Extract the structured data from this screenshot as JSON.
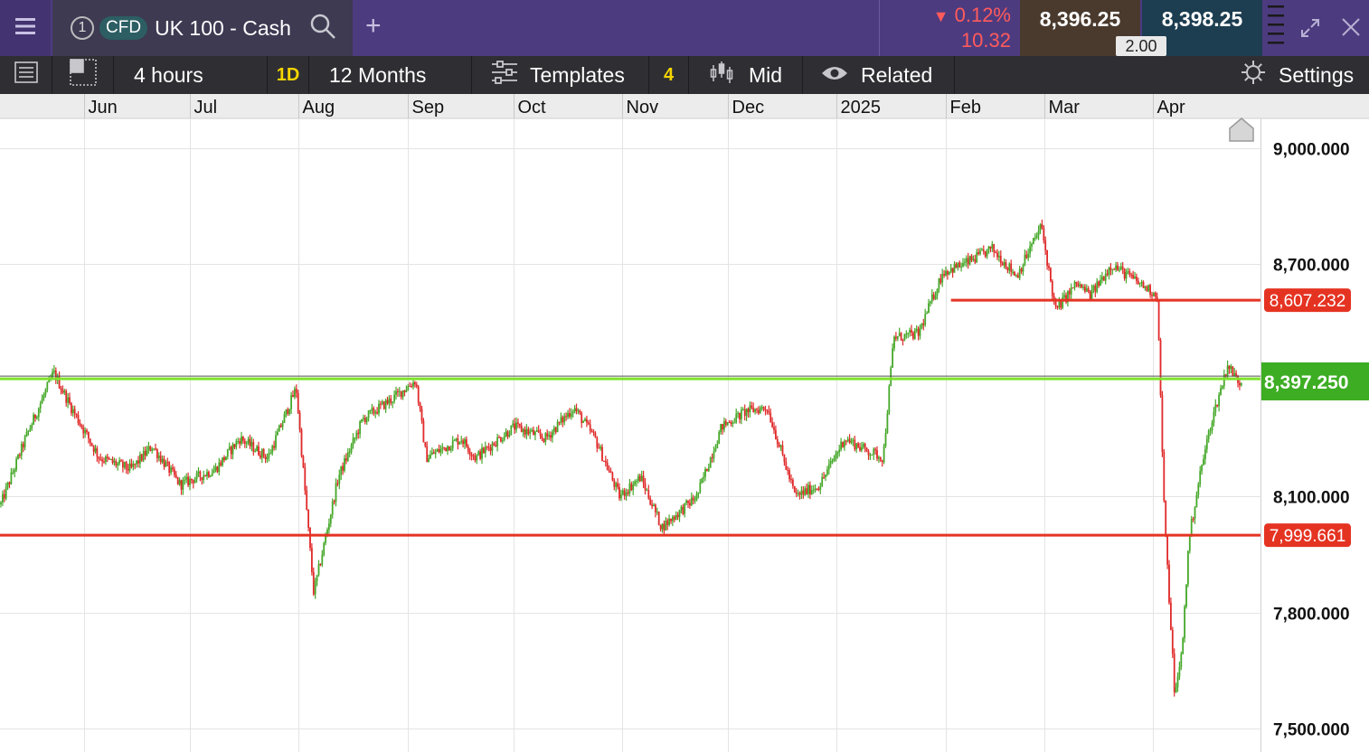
{
  "top_bar": {
    "tab_number": "1",
    "instrument_badge": "CFD",
    "instrument_name": "UK 100 - Cash",
    "change_percent": "0.12%",
    "change_value": "10.32",
    "sell_price": "8,396.25",
    "buy_price": "8,398.25",
    "spread": "2.00",
    "icons": [
      "menu-icon",
      "search-icon",
      "add-icon",
      "down-arrow-icon",
      "drag-handle-icon",
      "expand-icon",
      "close-icon"
    ]
  },
  "toolbar": {
    "interval": "4 hours",
    "period_badge": "1D",
    "range": "12 Months",
    "templates_label": "Templates",
    "indicator_count": "4",
    "price_type": "Mid",
    "related_label": "Related",
    "settings_label": "Settings",
    "icons": [
      "list-icon",
      "layout-icon",
      "sliders-icon",
      "candles-icon",
      "eye-icon",
      "gear-icon"
    ]
  },
  "chart_data": {
    "type": "candlestick",
    "instrument": "UK 100 - Cash",
    "x_labels": [
      "Jun",
      "Jul",
      "Aug",
      "Sep",
      "Oct",
      "Nov",
      "Dec",
      "2025",
      "Feb",
      "Mar",
      "Apr"
    ],
    "y_ticks": [
      "9,000.000",
      "8,700.000",
      "8,100.000",
      "7,800.000",
      "7,500.000"
    ],
    "y_tick_values": [
      9000,
      8700,
      8100,
      7800,
      7500
    ],
    "ylim": [
      7450,
      9080
    ],
    "grid": true,
    "up_color": "#46a82a",
    "down_color": "#e02a2a",
    "current_price": {
      "value": 8397.25,
      "label": "8,397.250",
      "color": "#3dad23"
    },
    "horizontal_lines": [
      {
        "value": 8607.232,
        "label": "8,607.232",
        "color": "#e53322",
        "start_date": "2025-02-01"
      },
      {
        "value": 7999.661,
        "label": "7,999.661",
        "color": "#e53322",
        "start_date": null
      }
    ],
    "support_line": {
      "value": 8404,
      "color": "#7fe32c"
    },
    "ohlc_path": [
      [
        "2024-05-08",
        8080
      ],
      [
        "2024-05-15",
        8250
      ],
      [
        "2024-05-23",
        8420
      ],
      [
        "2024-05-28",
        8330
      ],
      [
        "2024-06-05",
        8200
      ],
      [
        "2024-06-14",
        8170
      ],
      [
        "2024-06-20",
        8230
      ],
      [
        "2024-06-28",
        8130
      ],
      [
        "2024-07-08",
        8170
      ],
      [
        "2024-07-15",
        8250
      ],
      [
        "2024-07-23",
        8200
      ],
      [
        "2024-07-31",
        8380
      ],
      [
        "2024-08-05",
        7850
      ],
      [
        "2024-08-12",
        8150
      ],
      [
        "2024-08-19",
        8300
      ],
      [
        "2024-08-27",
        8350
      ],
      [
        "2024-09-03",
        8400
      ],
      [
        "2024-09-06",
        8200
      ],
      [
        "2024-09-16",
        8250
      ],
      [
        "2024-09-20",
        8200
      ],
      [
        "2024-10-01",
        8280
      ],
      [
        "2024-10-10",
        8250
      ],
      [
        "2024-10-18",
        8330
      ],
      [
        "2024-10-24",
        8250
      ],
      [
        "2024-10-31",
        8100
      ],
      [
        "2024-11-06",
        8150
      ],
      [
        "2024-11-12",
        8020
      ],
      [
        "2024-11-22",
        8100
      ],
      [
        "2024-11-29",
        8280
      ],
      [
        "2024-12-06",
        8320
      ],
      [
        "2024-12-12",
        8330
      ],
      [
        "2024-12-20",
        8100
      ],
      [
        "2024-12-27",
        8130
      ],
      [
        "2025-01-03",
        8250
      ],
      [
        "2025-01-09",
        8220
      ],
      [
        "2025-01-14",
        8200
      ],
      [
        "2025-01-17",
        8510
      ],
      [
        "2025-01-24",
        8520
      ],
      [
        "2025-01-31",
        8680
      ],
      [
        "2025-02-06",
        8700
      ],
      [
        "2025-02-14",
        8740
      ],
      [
        "2025-02-21",
        8670
      ],
      [
        "2025-02-28",
        8800
      ],
      [
        "2025-03-04",
        8580
      ],
      [
        "2025-03-10",
        8650
      ],
      [
        "2025-03-14",
        8620
      ],
      [
        "2025-03-20",
        8700
      ],
      [
        "2025-03-28",
        8650
      ],
      [
        "2025-04-02",
        8620
      ],
      [
        "2025-04-04",
        8050
      ],
      [
        "2025-04-07",
        7580
      ],
      [
        "2025-04-09",
        7700
      ],
      [
        "2025-04-11",
        7990
      ],
      [
        "2025-04-14",
        8150
      ],
      [
        "2025-04-17",
        8280
      ],
      [
        "2025-04-22",
        8440
      ],
      [
        "2025-04-25",
        8397
      ]
    ]
  }
}
